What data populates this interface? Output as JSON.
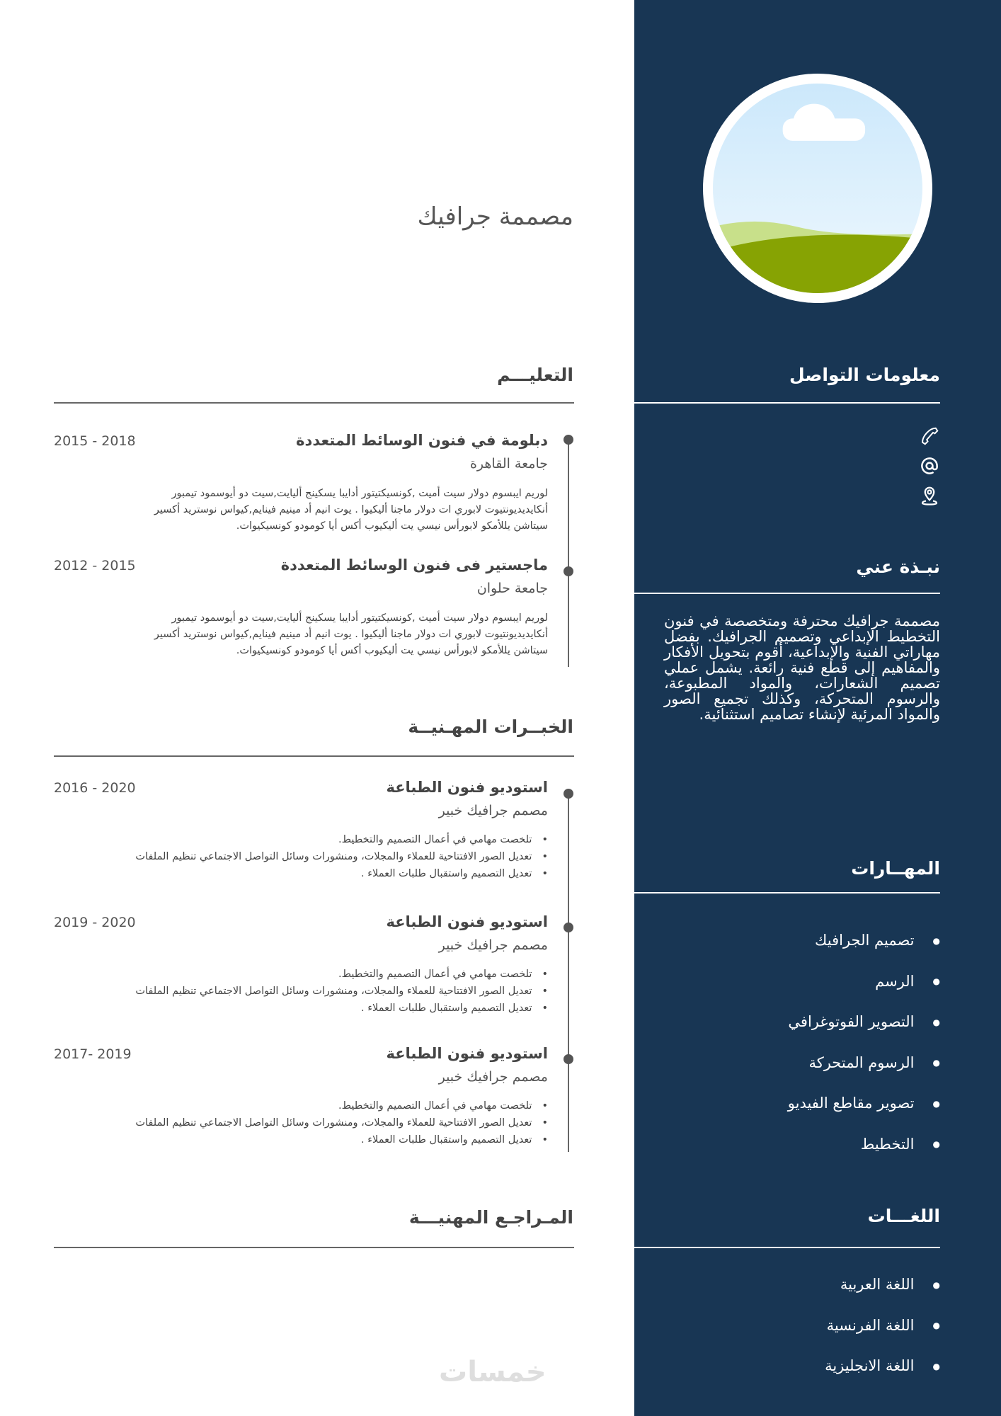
{
  "name": "مصممة جرافيك",
  "sections": {
    "education": "التعليـــم",
    "experience": "الخبــرات المهـنيــة",
    "references": "المـراجـع المهنيـــة",
    "contact": "معلومات التواصل",
    "about": "نبـذة عني",
    "skills": "المهــارات",
    "languages": "اللغـــات"
  },
  "education": [
    {
      "title": "دبلومة في فنون الوسائط المتعددة",
      "school": "جامعة القاهرة",
      "dates": "2015 - 2018",
      "desc": "لوريم ايبسوم دولار سيت أميت ,كونسيكتيتور أدايبا يسكينج أليايت,سيت دو أيوسمود تيمبور أنكايديديونتيوت لابوري ات دولار ماجنا أليكيوا . يوت انيم أد مينيم فينايم,كيواس نوستريد أكسير سيتاشن يللأمكو لابورأس نيسي يت أليكيوب أكس أيا كومودو كونسيكيوات."
    },
    {
      "title": "ماجستير فى فنون الوسائط المتعددة",
      "school": "جامعة حلوان",
      "dates": "2012 - 2015",
      "desc": "لوريم ايبسوم دولار سيت أميت ,كونسيكتيتور أدايبا يسكينج أليايت,سيت دو أيوسمود تيمبور أنكايديديونتيوت لابوري ات دولار ماجنا أليكيوا . يوت انيم أد مينيم فينايم,كيواس نوستريد أكسير سيتاشن يللأمكو لابورأس نيسي يت أليكيوب أكس أيا كومودو كونسيكيوات."
    }
  ],
  "experience": [
    {
      "title": "استوديو فنون الطباعة",
      "role": "مصمم جرافيك خبير",
      "dates": "2016 - 2020",
      "items": [
        "تلخصت مهامي في أعمال التصميم والتخطيط.",
        "تعديل الصور الافتتاحية للعملاء والمجلات، ومنشورات وسائل التواصل الاجتماعي تنظيم الملفات",
        "تعديل التصميم واستقبال طلبات العملاء ."
      ]
    },
    {
      "title": "استوديو فنون الطباعة",
      "role": "مصمم جرافيك خبير",
      "dates": "2019 - 2020",
      "items": [
        "تلخصت مهامي في أعمال التصميم والتخطيط.",
        "تعديل الصور الافتتاحية للعملاء والمجلات، ومنشورات وسائل التواصل الاجتماعي تنظيم الملفات",
        "تعديل التصميم واستقبال طلبات العملاء ."
      ]
    },
    {
      "title": "استوديو فنون الطباعة",
      "role": "مصمم جرافيك خبير",
      "dates": "2017- 2019",
      "items": [
        "تلخصت مهامي في أعمال التصميم والتخطيط.",
        "تعديل الصور الافتتاحية للعملاء والمجلات، ومنشورات وسائل التواصل الاجتماعي تنظيم الملفات",
        "تعديل التصميم واستقبال طلبات العملاء ."
      ]
    }
  ],
  "contact_icons": [
    "phone-icon",
    "at-icon",
    "location-pin-icon"
  ],
  "about": "مصممة جرافيك محترفة ومتخصصة في فنون التخطيط الإبداعي وتصميم الجرافيك. بفضل مهاراتي الفنية والإبداعية، أقوم بتحويل الأفكار والمفاهيم إلى قطع فنية رائعة. يشمل عملي تصميم الشعارات، والمواد المطبوعة، والرسوم المتحركة، وكذلك تجميع الصور والمواد المرئية لإنشاء تصاميم استثنائية.",
  "skills": [
    "تصميم الجرافيك",
    "الرسم",
    "التصوير الفوتوغرافي",
    "الرسوم المتحركة",
    "تصوير مقاطع الفيديو",
    "التخطيط"
  ],
  "languages": [
    "اللغة العربية",
    "اللغة الفرنسية",
    "اللغة الانجليزية"
  ],
  "logo": "خمسات",
  "colors": {
    "sidebar": "#183654",
    "text": "#444444"
  }
}
